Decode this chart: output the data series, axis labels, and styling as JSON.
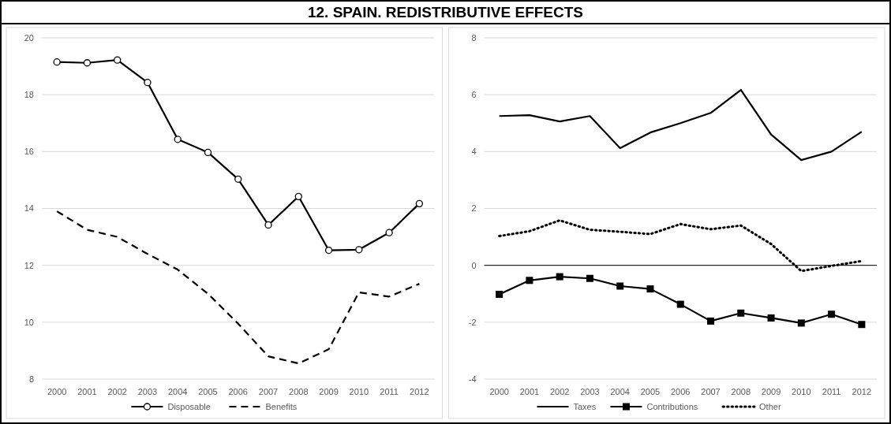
{
  "chart_data": [
    {
      "type": "line",
      "title": "12. SPAIN. REDISTRIBUTIVE EFFECTS",
      "categories": [
        "2000",
        "2001",
        "2002",
        "2003",
        "2004",
        "2005",
        "2006",
        "2007",
        "2008",
        "2009",
        "2010",
        "2011",
        "2012"
      ],
      "ylim": [
        8,
        20
      ],
      "yticks": [
        8,
        10,
        12,
        14,
        16,
        18,
        20
      ],
      "grid": "y",
      "legend": "bottom",
      "series": [
        {
          "name": "Disposable",
          "color": "#000000",
          "marker": "circle",
          "line_style": "solid",
          "values": [
            19.15,
            19.12,
            19.22,
            18.43,
            16.43,
            15.97,
            15.03,
            13.42,
            14.42,
            12.53,
            12.55,
            13.15,
            14.17
          ]
        },
        {
          "name": "Benefits",
          "color": "#000000",
          "marker": "none",
          "line_style": "dashed",
          "values": [
            13.9,
            13.25,
            13.0,
            12.4,
            11.85,
            11.0,
            9.95,
            8.8,
            8.55,
            9.05,
            11.05,
            10.9,
            11.35
          ]
        }
      ]
    },
    {
      "type": "line",
      "categories": [
        "2000",
        "2001",
        "2002",
        "2003",
        "2004",
        "2005",
        "2006",
        "2007",
        "2008",
        "2009",
        "2010",
        "2011",
        "2012"
      ],
      "ylim": [
        -4,
        8
      ],
      "yticks": [
        -4,
        -2,
        0,
        2,
        4,
        6,
        8
      ],
      "grid": "y",
      "legend": "bottom",
      "ref_lines": [
        {
          "axis": "y",
          "value": 0,
          "color": "#000000"
        }
      ],
      "series": [
        {
          "name": "Taxes",
          "color": "#000000",
          "marker": "none",
          "line_style": "solid",
          "values": [
            5.25,
            5.28,
            5.06,
            5.25,
            4.12,
            4.67,
            5.0,
            5.36,
            6.17,
            4.6,
            3.7,
            4.0,
            4.7
          ]
        },
        {
          "name": "Contributions",
          "color": "#000000",
          "marker": "square",
          "line_style": "solid",
          "values": [
            -1.02,
            -0.53,
            -0.4,
            -0.46,
            -0.73,
            -0.83,
            -1.37,
            -1.96,
            -1.68,
            -1.85,
            -2.03,
            -1.72,
            -2.08
          ]
        },
        {
          "name": "Other",
          "color": "#000000",
          "marker": "none",
          "line_style": "dotted",
          "values": [
            1.03,
            1.2,
            1.58,
            1.25,
            1.18,
            1.1,
            1.45,
            1.27,
            1.4,
            0.75,
            -0.2,
            -0.02,
            0.15
          ]
        }
      ]
    }
  ]
}
